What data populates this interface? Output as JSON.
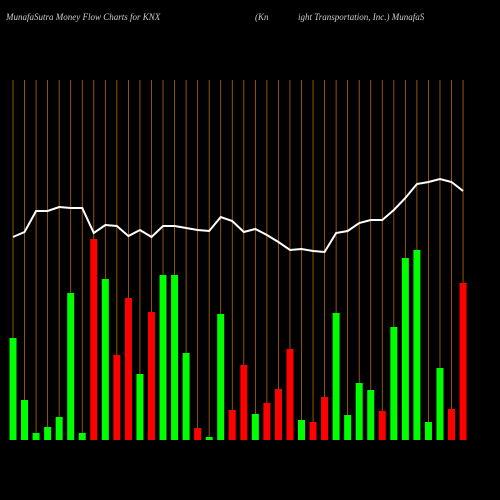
{
  "chart_data": {
    "type": "bar",
    "title_parts": [
      "MunafaSutra  Money Flow  Charts for KNX",
      "(Kn",
      "ight Transportation,  Inc.) MunafaS"
    ],
    "categories": [
      null,
      null,
      null,
      null,
      null,
      null,
      null,
      null,
      null,
      null,
      null,
      null,
      null,
      null,
      null,
      null,
      null,
      null,
      null,
      null,
      null,
      null,
      null,
      null,
      null,
      null,
      null,
      null,
      null,
      null,
      null,
      null,
      null,
      null,
      null,
      null,
      null,
      null,
      null,
      null
    ],
    "ylim": [
      0,
      360
    ],
    "grid": true,
    "grid_color": "#b8680e",
    "series": [
      {
        "type": "bar",
        "values": [
          102,
          40,
          7,
          13,
          23,
          147,
          7,
          201,
          161,
          85,
          142,
          66,
          128,
          165,
          165,
          87,
          12,
          3,
          126,
          30,
          75,
          26,
          37,
          51,
          91,
          20,
          18,
          43,
          127,
          25,
          57,
          50,
          29,
          113,
          182,
          190,
          18,
          72,
          31,
          157
        ],
        "colors": [
          "#00ff00",
          "#00ff00",
          "#00ff00",
          "#00ff00",
          "#00ff00",
          "#00ff00",
          "#00ff00",
          "#ff0000",
          "#00ff00",
          "#ff0000",
          "#ff0000",
          "#00ff00",
          "#ff0000",
          "#00ff00",
          "#00ff00",
          "#00ff00",
          "#ff0000",
          "#00ff00",
          "#00ff00",
          "#ff0000",
          "#ff0000",
          "#00ff00",
          "#ff0000",
          "#ff0000",
          "#ff0000",
          "#00ff00",
          "#ff0000",
          "#ff0000",
          "#00ff00",
          "#00ff00",
          "#00ff00",
          "#00ff00",
          "#ff0000",
          "#00ff00",
          "#00ff00",
          "#00ff00",
          "#00ff00",
          "#00ff00",
          "#ff0000",
          "#ff0000"
        ]
      },
      {
        "type": "line",
        "color": "#ffffff",
        "values": [
          203,
          208,
          229,
          229,
          233,
          232,
          232,
          207,
          215,
          214,
          204,
          210,
          203,
          214,
          214,
          212,
          210,
          209,
          223,
          219,
          208,
          211,
          205,
          198,
          190,
          191,
          189,
          188,
          207,
          209,
          217,
          220,
          220,
          230,
          242,
          256,
          258,
          261,
          258,
          249
        ]
      }
    ]
  }
}
